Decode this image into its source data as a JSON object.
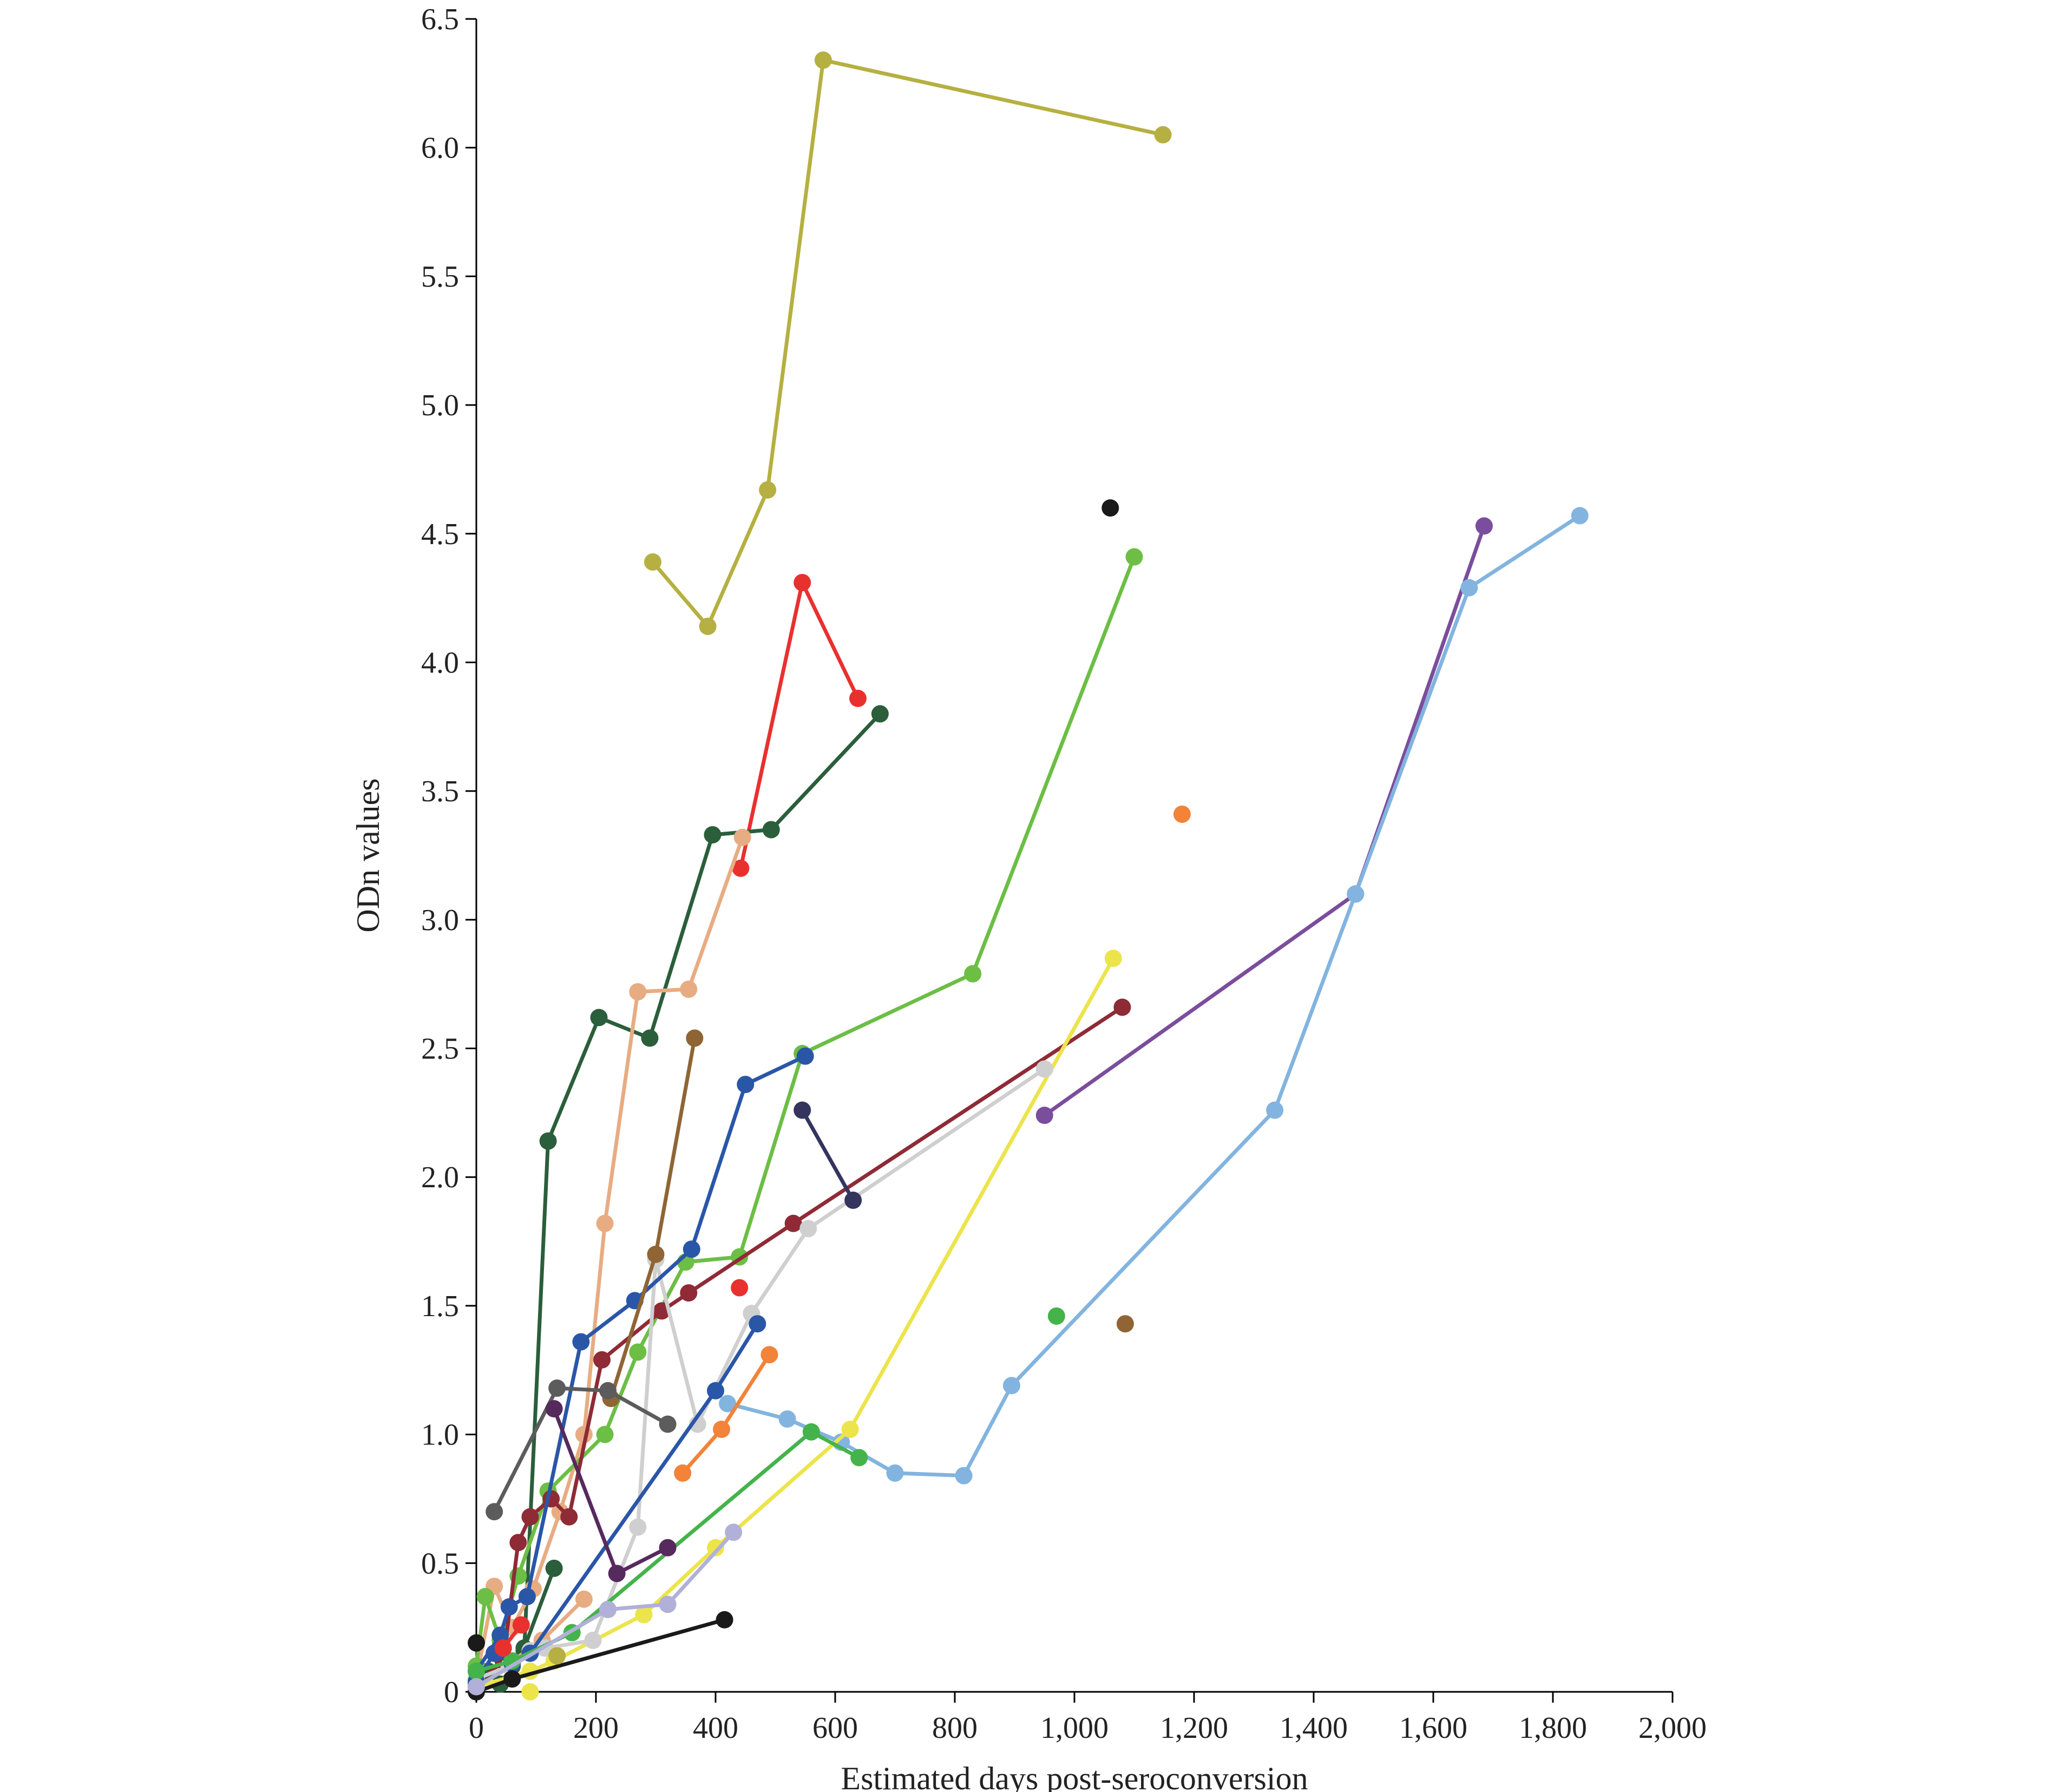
{
  "chart_data": {
    "type": "line",
    "title": "",
    "xlabel": "Estimated days post-seroconversion",
    "ylabel": "ODn values",
    "xlim": [
      0,
      2000
    ],
    "ylim": [
      0,
      6.5
    ],
    "x_ticks": [
      0,
      200,
      400,
      600,
      800,
      1000,
      1200,
      1400,
      1600,
      1800,
      2000
    ],
    "x_tick_labels": [
      "0",
      "200",
      "400",
      "600",
      "800",
      "1,000",
      "1,200",
      "1,400",
      "1,600",
      "1,800",
      "2,000"
    ],
    "y_ticks": [
      0,
      0.5,
      1.0,
      1.5,
      2.0,
      2.5,
      3.0,
      3.5,
      4.0,
      4.5,
      5.0,
      5.5,
      6.0,
      6.5
    ],
    "y_tick_labels": [
      "0",
      "0.5",
      "1.0",
      "1.5",
      "2.0",
      "2.5",
      "3.0",
      "3.5",
      "4.0",
      "4.5",
      "5.0",
      "5.5",
      "6.0",
      "6.5"
    ],
    "grid": false,
    "legend": "none",
    "series": [
      {
        "color": "#b5b041",
        "x": [
          295,
          387,
          487,
          580,
          1148
        ],
        "y": [
          4.39,
          4.14,
          4.67,
          6.34,
          6.05
        ]
      },
      {
        "color": "#e8312f",
        "x": [
          442,
          545,
          638
        ],
        "y": [
          3.2,
          4.31,
          3.86
        ]
      },
      {
        "color": "#2b5e3b",
        "x": [
          0,
          20,
          40,
          60,
          80,
          120,
          205,
          290,
          395,
          493,
          675
        ],
        "y": [
          0.02,
          0.08,
          0.03,
          0.1,
          0.16,
          2.14,
          2.62,
          2.54,
          3.33,
          3.35,
          3.8
        ]
      },
      {
        "color": "#2b5e3b",
        "x": [
          80,
          130
        ],
        "y": [
          0.17,
          0.48
        ]
      },
      {
        "color": "#e8ac82",
        "x": [
          0,
          30,
          60,
          95,
          140,
          180,
          215,
          270,
          355,
          445
        ],
        "y": [
          0.05,
          0.41,
          0.25,
          0.4,
          0.7,
          1.0,
          1.82,
          2.72,
          2.73,
          3.32
        ]
      },
      {
        "color": "#e8ac82",
        "x": [
          60,
          110,
          180
        ],
        "y": [
          0.12,
          0.2,
          0.36
        ]
      },
      {
        "color": "#6cbe45",
        "x": [
          0,
          15,
          40,
          70,
          120,
          215,
          270,
          350,
          440,
          545,
          830,
          1100
        ],
        "y": [
          0.1,
          0.37,
          0.2,
          0.45,
          0.78,
          1.0,
          1.32,
          1.67,
          1.69,
          2.48,
          2.79,
          4.41
        ]
      },
      {
        "color": "#7b4d9d",
        "x": [
          950,
          1470,
          1685
        ],
        "y": [
          2.24,
          3.1,
          4.53
        ]
      },
      {
        "color": "#82b4df",
        "x": [
          420,
          520,
          610,
          700,
          815,
          895,
          1335,
          1470,
          1660,
          1845
        ],
        "y": [
          1.12,
          1.06,
          0.97,
          0.85,
          0.84,
          1.19,
          2.26,
          3.1,
          4.29,
          4.57
        ]
      },
      {
        "color": "#8e2b36",
        "x": [
          0,
          45,
          70,
          90,
          125,
          155,
          210,
          310,
          355,
          530,
          1080
        ],
        "y": [
          0.03,
          0.12,
          0.58,
          0.68,
          0.75,
          0.68,
          1.29,
          1.48,
          1.55,
          1.82,
          2.66
        ]
      },
      {
        "color": "#ece44b",
        "x": [
          0,
          90,
          130,
          280,
          400,
          625,
          1065
        ],
        "y": [
          0.02,
          0.08,
          0.12,
          0.3,
          0.56,
          1.02,
          2.85
        ]
      },
      {
        "color": "#cfcfcf",
        "x": [
          0,
          55,
          90,
          115,
          195,
          270,
          300,
          370,
          460,
          555,
          950
        ],
        "y": [
          0.05,
          0.1,
          0.16,
          0.17,
          0.2,
          0.64,
          1.68,
          1.04,
          1.47,
          1.8,
          2.42
        ]
      },
      {
        "color": "#2a56a8",
        "x": [
          0,
          30,
          60,
          90,
          400,
          470
        ],
        "y": [
          0.04,
          0.15,
          0.11,
          0.15,
          1.17,
          1.43
        ]
      },
      {
        "color": "#2a56a8",
        "x": [
          0,
          40,
          55,
          85,
          175,
          265,
          360,
          450,
          550
        ],
        "y": [
          0.08,
          0.22,
          0.33,
          0.37,
          1.36,
          1.52,
          1.72,
          2.36,
          2.47
        ]
      },
      {
        "color": "#f28338",
        "x": [
          345,
          410,
          490
        ],
        "y": [
          0.85,
          1.02,
          1.31
        ]
      },
      {
        "color": "#8f6535",
        "x": [
          225,
          300,
          365
        ],
        "y": [
          1.14,
          1.7,
          2.54
        ]
      },
      {
        "color": "#5c5c5c",
        "x": [
          30,
          135,
          220,
          320
        ],
        "y": [
          0.7,
          1.18,
          1.17,
          1.04
        ]
      },
      {
        "color": "#1a1a1a",
        "x": [
          0,
          60,
          415
        ],
        "y": [
          0.0,
          0.05,
          0.28
        ]
      },
      {
        "color": "#44b34b",
        "x": [
          0,
          60,
          160,
          560,
          640
        ],
        "y": [
          0.08,
          0.12,
          0.23,
          1.01,
          0.91
        ]
      },
      {
        "color": "#562a5d",
        "x": [
          130,
          235,
          320
        ],
        "y": [
          1.1,
          0.46,
          0.56
        ]
      },
      {
        "color": "#b0b0d8",
        "x": [
          0,
          220,
          320,
          430
        ],
        "y": [
          0.02,
          0.32,
          0.34,
          0.62
        ]
      },
      {
        "color": "#34345e",
        "x": [
          545,
          630
        ],
        "y": [
          2.26,
          1.91
        ]
      },
      {
        "color": "#44b34b",
        "x": [
          970
        ],
        "y": [
          1.46
        ]
      },
      {
        "color": "#1a1a1a",
        "x": [
          1060
        ],
        "y": [
          4.6
        ]
      },
      {
        "color": "#f28338",
        "x": [
          1180
        ],
        "y": [
          3.41
        ]
      },
      {
        "color": "#8f6535",
        "x": [
          1085
        ],
        "y": [
          1.43
        ]
      },
      {
        "color": "#e8312f",
        "x": [
          440
        ],
        "y": [
          1.57
        ]
      },
      {
        "color": "#e8312f",
        "x": [
          45,
          75
        ],
        "y": [
          0.17,
          0.26
        ]
      },
      {
        "color": "#1a1a1a",
        "x": [
          0
        ],
        "y": [
          0.19
        ]
      },
      {
        "color": "#b5b041",
        "x": [
          135
        ],
        "y": [
          0.14
        ]
      },
      {
        "color": "#ece44b",
        "x": [
          90
        ],
        "y": [
          0.0
        ]
      }
    ]
  }
}
